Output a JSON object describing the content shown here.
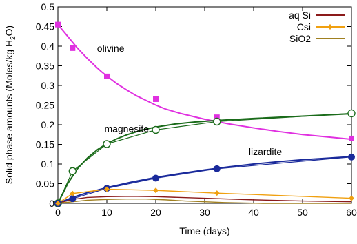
{
  "chart_data": {
    "type": "line",
    "title": "",
    "xlabel": "Time (days)",
    "ylabel": {
      "prefix": "Solid phase amounts (Moles/kg H",
      "subscript": "2",
      "suffix": "O)"
    },
    "xlim": [
      0,
      60
    ],
    "ylim": [
      0,
      0.5
    ],
    "x_ticks": [
      "0",
      "10",
      "20",
      "30",
      "40",
      "50",
      "60"
    ],
    "y_ticks": [
      "0",
      "0.05",
      "0.1",
      "0.15",
      "0.2",
      "0.25",
      "0.3",
      "0.35",
      "0.4",
      "0.45",
      "0.5"
    ],
    "grid": false,
    "legend_position": "top-right",
    "legend": [
      {
        "name": "aq Si",
        "color": "#8b1a1a",
        "marker": "none"
      },
      {
        "name": "Csi",
        "color": "#f0a010",
        "marker": "diamond"
      },
      {
        "name": "SiO2",
        "color": "#a08020",
        "marker": "none"
      }
    ],
    "annotations": [
      {
        "text": "olivine",
        "x": 8,
        "y": 0.395
      },
      {
        "text": "magnesite",
        "x": 9.5,
        "y": 0.19
      },
      {
        "text": "lizardite",
        "x": 39,
        "y": 0.132
      }
    ],
    "series": [
      {
        "key": "olivine_model",
        "color": "#e030e0",
        "width": 2,
        "points": [
          [
            0,
            0.455
          ],
          [
            1,
            0.44
          ],
          [
            2,
            0.425
          ],
          [
            3,
            0.41
          ],
          [
            4,
            0.395
          ],
          [
            5,
            0.382
          ],
          [
            6,
            0.369
          ],
          [
            7,
            0.357
          ],
          [
            8,
            0.345
          ],
          [
            9,
            0.334
          ],
          [
            10,
            0.324
          ],
          [
            12,
            0.305
          ],
          [
            14,
            0.289
          ],
          [
            16,
            0.274
          ],
          [
            18,
            0.262
          ],
          [
            20,
            0.25
          ],
          [
            22,
            0.24
          ],
          [
            25,
            0.229
          ],
          [
            28,
            0.22
          ],
          [
            30,
            0.214
          ],
          [
            32.5,
            0.208
          ],
          [
            35,
            0.202
          ],
          [
            40,
            0.192
          ],
          [
            45,
            0.183
          ],
          [
            50,
            0.175
          ],
          [
            55,
            0.169
          ],
          [
            60,
            0.163
          ]
        ]
      },
      {
        "key": "olivine_observed",
        "color": "#e030e0",
        "marker": "square",
        "points": [
          [
            0,
            0.455
          ],
          [
            3,
            0.395
          ],
          [
            10,
            0.323
          ],
          [
            20,
            0.265
          ],
          [
            32.5,
            0.219
          ],
          [
            60,
            0.165
          ]
        ]
      },
      {
        "key": "magnesite_model_a",
        "color": "#1a6b1a",
        "width": 2,
        "points": [
          [
            0,
            0
          ],
          [
            2,
            0.05
          ],
          [
            4,
            0.088
          ],
          [
            6,
            0.115
          ],
          [
            8,
            0.136
          ],
          [
            10,
            0.152
          ],
          [
            12,
            0.164
          ],
          [
            14,
            0.174
          ],
          [
            16,
            0.182
          ],
          [
            18,
            0.189
          ],
          [
            20,
            0.194
          ],
          [
            24,
            0.202
          ],
          [
            28,
            0.207
          ],
          [
            32.5,
            0.211
          ],
          [
            40,
            0.216
          ],
          [
            50,
            0.222
          ],
          [
            60,
            0.228
          ]
        ]
      },
      {
        "key": "magnesite_observed",
        "color": "#1a6b1a",
        "width": 1.2,
        "marker": "open-circle",
        "points": [
          [
            0,
            0
          ],
          [
            3,
            0.082
          ],
          [
            10,
            0.151
          ],
          [
            20,
            0.187
          ],
          [
            32.5,
            0.208
          ],
          [
            60,
            0.229
          ]
        ]
      },
      {
        "key": "lizardite_model_a",
        "color": "#1a2a9b",
        "width": 2,
        "points": [
          [
            0,
            0
          ],
          [
            3,
            0.015
          ],
          [
            6,
            0.027
          ],
          [
            10,
            0.04
          ],
          [
            15,
            0.054
          ],
          [
            20,
            0.066
          ],
          [
            25,
            0.076
          ],
          [
            30,
            0.085
          ],
          [
            35,
            0.093
          ],
          [
            40,
            0.1
          ],
          [
            45,
            0.106
          ],
          [
            50,
            0.111
          ],
          [
            55,
            0.115
          ],
          [
            60,
            0.119
          ]
        ]
      },
      {
        "key": "lizardite_observed",
        "color": "#1a2a9b",
        "width": 1.2,
        "marker": "filled-circle",
        "points": [
          [
            0,
            0
          ],
          [
            3,
            0.012
          ],
          [
            10,
            0.038
          ],
          [
            20,
            0.064
          ],
          [
            32.5,
            0.088
          ],
          [
            60,
            0.118
          ]
        ]
      },
      {
        "key": "aq_si",
        "color": "#8b1a1a",
        "width": 1.4,
        "points": [
          [
            0,
            0
          ],
          [
            3,
            0.01
          ],
          [
            6,
            0.015
          ],
          [
            10,
            0.017
          ],
          [
            15,
            0.018
          ],
          [
            20,
            0.017
          ],
          [
            30,
            0.013
          ],
          [
            40,
            0.009
          ],
          [
            50,
            0.006
          ],
          [
            60,
            0.004
          ]
        ]
      },
      {
        "key": "csi",
        "color": "#f0a010",
        "width": 1.4,
        "marker": "diamond",
        "points": [
          [
            0,
            0
          ],
          [
            3,
            0.025
          ],
          [
            10,
            0.036
          ],
          [
            20,
            0.033
          ],
          [
            32.5,
            0.026
          ],
          [
            60,
            0.013
          ]
        ]
      },
      {
        "key": "sio2",
        "color": "#a08020",
        "width": 1.4,
        "points": [
          [
            0,
            0
          ],
          [
            3,
            0.004
          ],
          [
            6,
            0.008
          ],
          [
            10,
            0.01
          ],
          [
            14,
            0.011
          ],
          [
            18,
            0.011
          ],
          [
            22,
            0.009
          ],
          [
            26,
            0.006
          ],
          [
            30,
            0.004
          ],
          [
            34,
            0.002
          ],
          [
            38,
            0.001
          ],
          [
            42,
            0.0
          ],
          [
            60,
            0.0
          ]
        ]
      }
    ]
  }
}
